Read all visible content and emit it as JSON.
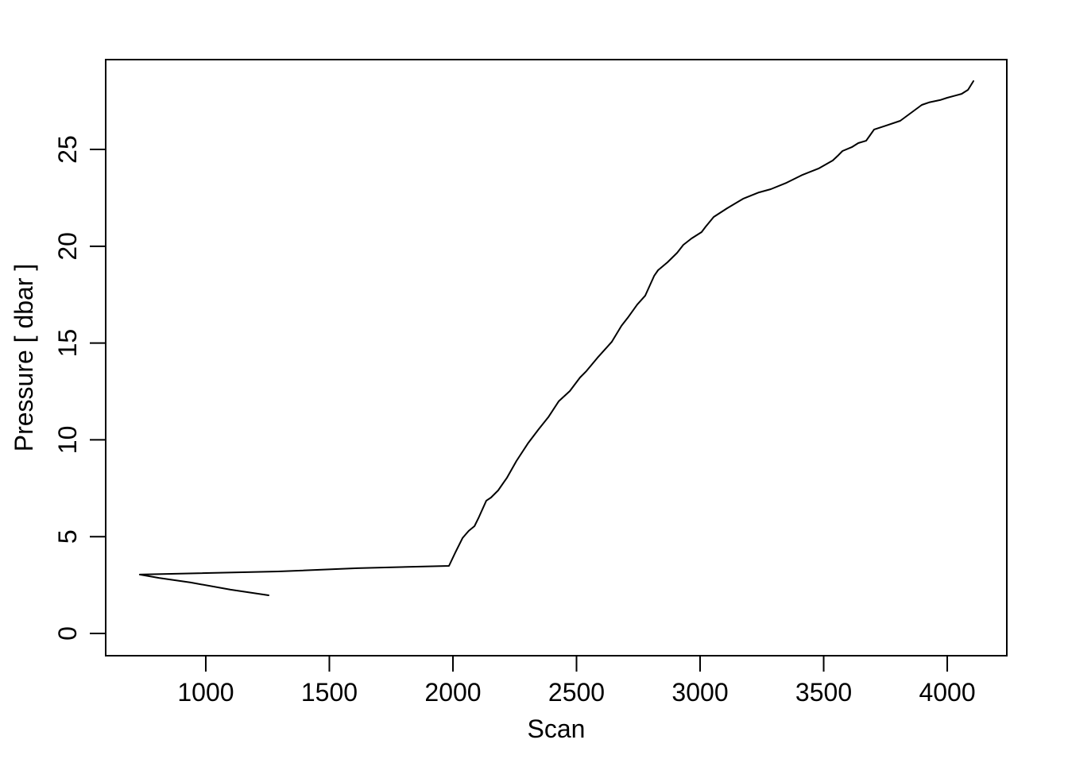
{
  "figure": {
    "background_color": "#ffffff",
    "line_color": "#000000",
    "axis_color": "#000000"
  },
  "chart_data": {
    "type": "line",
    "title": "",
    "xlabel": "Scan",
    "ylabel": "Pressure [ dbar ]",
    "x_ticks": [
      1000,
      1500,
      2000,
      2500,
      3000,
      3500,
      4000
    ],
    "y_ticks": [
      0,
      5,
      10,
      15,
      20,
      25
    ],
    "xlim": [
      595,
      4241
    ],
    "ylim": [
      -1.15,
      29.64
    ],
    "grid": false,
    "legend": "none",
    "series": [
      {
        "name": "pressure",
        "color": "#000000",
        "x": [
          1254,
          1100,
          939,
          810,
          733,
          1293,
          1614,
          1984,
          2010,
          2039,
          2064,
          2087,
          2103,
          2135,
          2154,
          2183,
          2219,
          2257,
          2305,
          2347,
          2386,
          2428,
          2473,
          2514,
          2540,
          2585,
          2643,
          2682,
          2707,
          2746,
          2778,
          2814,
          2830,
          2868,
          2907,
          2932,
          2965,
          3006,
          3023,
          3055,
          3109,
          3174,
          3238,
          3286,
          3350,
          3415,
          3479,
          3537,
          3560,
          3576,
          3614,
          3640,
          3672,
          3688,
          3704,
          3752,
          3810,
          3849,
          3897,
          3929,
          3971,
          4000,
          4032,
          4058,
          4084,
          4106
        ],
        "y": [
          1.97,
          2.26,
          2.63,
          2.87,
          3.04,
          3.2,
          3.37,
          3.49,
          4.19,
          4.93,
          5.3,
          5.54,
          5.95,
          6.86,
          7.02,
          7.39,
          8.05,
          8.91,
          9.85,
          10.55,
          11.17,
          11.99,
          12.52,
          13.22,
          13.55,
          14.24,
          15.07,
          15.89,
          16.3,
          16.99,
          17.45,
          18.47,
          18.76,
          19.17,
          19.66,
          20.07,
          20.4,
          20.73,
          21.02,
          21.51,
          21.96,
          22.45,
          22.78,
          22.95,
          23.28,
          23.69,
          24.01,
          24.43,
          24.71,
          24.92,
          25.12,
          25.33,
          25.45,
          25.74,
          26.03,
          26.23,
          26.48,
          26.85,
          27.3,
          27.44,
          27.55,
          27.67,
          27.78,
          27.87,
          28.08,
          28.53
        ]
      }
    ]
  }
}
